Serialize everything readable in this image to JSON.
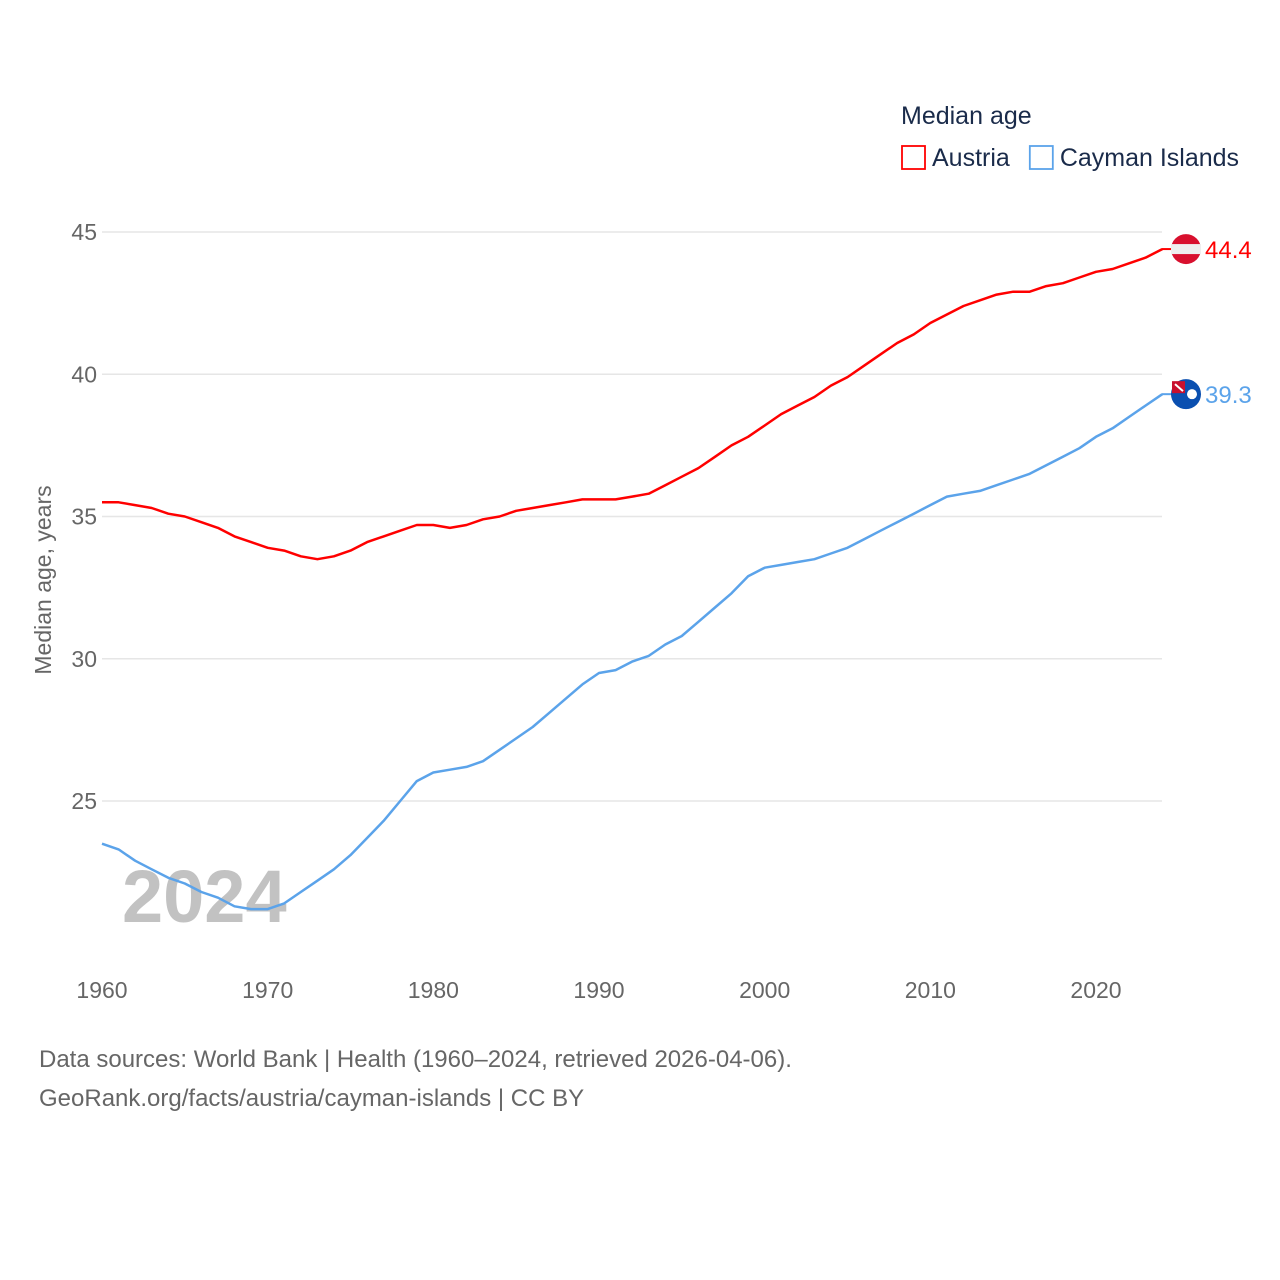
{
  "chart_data": {
    "type": "line",
    "title": "Median age",
    "xlabel": "",
    "ylabel": "Median age, years",
    "xlim": [
      1960,
      2024
    ],
    "x_ticks": [
      1960,
      1970,
      1980,
      1990,
      2000,
      2010,
      2020
    ],
    "y_ticks": [
      25,
      30,
      35,
      40,
      45
    ],
    "grid": true,
    "legend_position": "top-right",
    "watermark_year": "2024",
    "x": [
      1960,
      1961,
      1962,
      1963,
      1964,
      1965,
      1966,
      1967,
      1968,
      1969,
      1970,
      1971,
      1972,
      1973,
      1974,
      1975,
      1976,
      1977,
      1978,
      1979,
      1980,
      1981,
      1982,
      1983,
      1984,
      1985,
      1986,
      1987,
      1988,
      1989,
      1990,
      1991,
      1992,
      1993,
      1994,
      1995,
      1996,
      1997,
      1998,
      1999,
      2000,
      2001,
      2002,
      2003,
      2004,
      2005,
      2006,
      2007,
      2008,
      2009,
      2010,
      2011,
      2012,
      2013,
      2014,
      2015,
      2016,
      2017,
      2018,
      2019,
      2020,
      2021,
      2022,
      2023,
      2024
    ],
    "series": [
      {
        "name": "Austria",
        "color": "#ff0000",
        "end_label": "44.4",
        "values": [
          35.5,
          35.5,
          35.4,
          35.3,
          35.1,
          35.0,
          34.8,
          34.6,
          34.3,
          34.1,
          33.9,
          33.8,
          33.6,
          33.5,
          33.6,
          33.8,
          34.1,
          34.3,
          34.5,
          34.7,
          34.7,
          34.6,
          34.7,
          34.9,
          35.0,
          35.2,
          35.3,
          35.4,
          35.5,
          35.6,
          35.6,
          35.6,
          35.7,
          35.8,
          36.1,
          36.4,
          36.7,
          37.1,
          37.5,
          37.8,
          38.2,
          38.6,
          38.9,
          39.2,
          39.6,
          39.9,
          40.3,
          40.7,
          41.1,
          41.4,
          41.8,
          42.1,
          42.4,
          42.6,
          42.8,
          42.9,
          42.9,
          43.1,
          43.2,
          43.4,
          43.6,
          43.7,
          43.9,
          44.1,
          44.4
        ]
      },
      {
        "name": "Cayman Islands",
        "color": "#5ba3ea",
        "end_label": "39.3",
        "values": [
          23.5,
          23.3,
          22.9,
          22.6,
          22.3,
          22.1,
          21.8,
          21.6,
          21.3,
          21.2,
          21.2,
          21.4,
          21.8,
          22.2,
          22.6,
          23.1,
          23.7,
          24.3,
          25.0,
          25.7,
          26.0,
          26.1,
          26.2,
          26.4,
          26.8,
          27.2,
          27.6,
          28.1,
          28.6,
          29.1,
          29.5,
          29.6,
          29.9,
          30.1,
          30.5,
          30.8,
          31.3,
          31.8,
          32.3,
          32.9,
          33.2,
          33.3,
          33.4,
          33.5,
          33.7,
          33.9,
          34.2,
          34.5,
          34.8,
          35.1,
          35.4,
          35.7,
          35.8,
          35.9,
          36.1,
          36.3,
          36.5,
          36.8,
          37.1,
          37.4,
          37.8,
          38.1,
          38.5,
          38.9,
          39.3
        ]
      }
    ]
  },
  "footer": {
    "sources": "Data sources: World Bank | Health (1960–2024, retrieved 2026-04-06).",
    "url": "GeoRank.org/facts/austria/cayman-islands | CC BY"
  }
}
